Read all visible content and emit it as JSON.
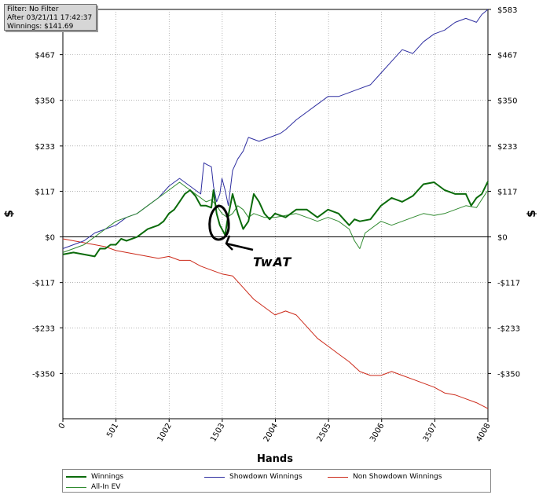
{
  "filter_box": {
    "line1": "Filter: No Filter",
    "line2": "After 03/21/11 17:42:37",
    "line3": "Winnings: $141.69"
  },
  "annotation": {
    "text": "TwAT"
  },
  "chart_data": {
    "type": "line",
    "title": "",
    "xlabel": "Hands",
    "ylabel": "$",
    "xlim": [
      0,
      4008
    ],
    "ylim": [
      -466,
      583
    ],
    "x_ticks": [
      0,
      501,
      1002,
      1503,
      2004,
      2505,
      3006,
      3507,
      4008
    ],
    "x_tick_labels": [
      "0",
      "501",
      "1002",
      "1503",
      "2004",
      "2505",
      "3006",
      "3507",
      "4008"
    ],
    "y_ticks": [
      -350,
      -233,
      -117,
      0,
      117,
      233,
      350,
      467,
      583
    ],
    "y_tick_labels": [
      "-$350",
      "-$233",
      "-$117",
      "$0",
      "$117",
      "$233",
      "$350",
      "$467",
      "$583"
    ],
    "grid": true,
    "legend_position": "bottom",
    "series": [
      {
        "name": "Winnings",
        "color": "#0b6b0b",
        "x": [
          0,
          100,
          200,
          300,
          350,
          400,
          450,
          500,
          550,
          600,
          700,
          800,
          900,
          950,
          1000,
          1050,
          1100,
          1150,
          1200,
          1250,
          1300,
          1350,
          1400,
          1420,
          1450,
          1480,
          1500,
          1530,
          1550,
          1600,
          1650,
          1700,
          1750,
          1800,
          1850,
          1900,
          1950,
          2000,
          2100,
          2200,
          2300,
          2400,
          2500,
          2600,
          2700,
          2750,
          2800,
          2900,
          3000,
          3100,
          3200,
          3300,
          3400,
          3500,
          3600,
          3700,
          3800,
          3850,
          3900,
          3950,
          4008
        ],
        "values": [
          -45,
          -40,
          -45,
          -50,
          -30,
          -30,
          -20,
          -20,
          -5,
          -10,
          0,
          20,
          30,
          40,
          60,
          70,
          90,
          110,
          120,
          105,
          80,
          80,
          75,
          120,
          60,
          30,
          20,
          5,
          40,
          110,
          60,
          20,
          40,
          110,
          90,
          60,
          45,
          60,
          50,
          70,
          70,
          50,
          70,
          60,
          30,
          45,
          40,
          45,
          80,
          100,
          90,
          105,
          135,
          140,
          120,
          110,
          110,
          80,
          100,
          110,
          142
        ]
      },
      {
        "name": "Showdown Winnings",
        "color": "#2e2ea0",
        "x": [
          0,
          100,
          200,
          300,
          400,
          500,
          600,
          700,
          800,
          900,
          1000,
          1050,
          1100,
          1150,
          1200,
          1250,
          1300,
          1330,
          1360,
          1400,
          1420,
          1450,
          1480,
          1500,
          1530,
          1560,
          1600,
          1650,
          1700,
          1750,
          1800,
          1850,
          1900,
          1950,
          2000,
          2050,
          2100,
          2200,
          2300,
          2400,
          2500,
          2600,
          2700,
          2800,
          2900,
          3000,
          3100,
          3200,
          3300,
          3400,
          3500,
          3600,
          3700,
          3800,
          3900,
          3950,
          4008
        ],
        "values": [
          -30,
          -20,
          -10,
          10,
          20,
          30,
          50,
          60,
          80,
          100,
          130,
          140,
          150,
          140,
          130,
          120,
          110,
          190,
          185,
          180,
          130,
          90,
          110,
          150,
          120,
          80,
          170,
          200,
          220,
          255,
          250,
          245,
          250,
          255,
          260,
          265,
          275,
          300,
          320,
          340,
          360,
          360,
          370,
          380,
          390,
          420,
          450,
          480,
          470,
          500,
          520,
          530,
          550,
          560,
          550,
          570,
          583
        ]
      },
      {
        "name": "Non Showdown Winnings",
        "color": "#cc2a1a",
        "x": [
          0,
          100,
          200,
          300,
          400,
          500,
          600,
          700,
          800,
          900,
          1000,
          1100,
          1200,
          1300,
          1400,
          1500,
          1600,
          1700,
          1800,
          1900,
          2000,
          2100,
          2200,
          2300,
          2400,
          2500,
          2600,
          2700,
          2800,
          2900,
          3000,
          3100,
          3200,
          3300,
          3400,
          3500,
          3600,
          3700,
          3800,
          3900,
          4008
        ],
        "values": [
          -5,
          -10,
          -15,
          -20,
          -25,
          -35,
          -40,
          -45,
          -50,
          -55,
          -50,
          -60,
          -60,
          -75,
          -85,
          -95,
          -100,
          -130,
          -160,
          -180,
          -200,
          -190,
          -200,
          -230,
          -260,
          -280,
          -300,
          -320,
          -345,
          -355,
          -355,
          -345,
          -355,
          -365,
          -375,
          -385,
          -400,
          -405,
          -415,
          -425,
          -440
        ]
      },
      {
        "name": "All-In EV",
        "color": "#2f8a2f",
        "x": [
          0,
          100,
          200,
          300,
          400,
          500,
          600,
          700,
          800,
          900,
          1000,
          1050,
          1100,
          1150,
          1200,
          1250,
          1300,
          1350,
          1400,
          1450,
          1500,
          1550,
          1600,
          1650,
          1700,
          1750,
          1800,
          1900,
          2000,
          2100,
          2200,
          2300,
          2400,
          2500,
          2600,
          2700,
          2750,
          2800,
          2850,
          2900,
          3000,
          3100,
          3200,
          3300,
          3400,
          3500,
          3600,
          3700,
          3800,
          3900,
          4008
        ],
        "values": [
          -40,
          -30,
          -20,
          0,
          20,
          40,
          50,
          60,
          80,
          100,
          120,
          130,
          140,
          130,
          120,
          110,
          100,
          90,
          95,
          80,
          60,
          50,
          60,
          80,
          70,
          50,
          60,
          50,
          50,
          55,
          60,
          50,
          40,
          50,
          40,
          20,
          -10,
          -30,
          10,
          20,
          40,
          30,
          40,
          50,
          60,
          55,
          60,
          70,
          80,
          75,
          120
        ]
      }
    ]
  }
}
